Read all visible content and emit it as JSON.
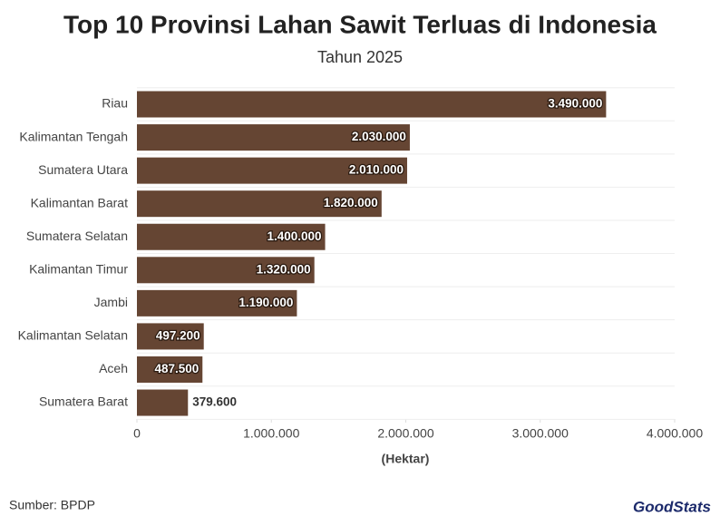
{
  "chart_data": {
    "type": "hbar",
    "title": "Top 10 Provinsi Lahan Sawit Terluas di Indonesia",
    "subtitle": "Tahun 2025",
    "x_label": "(Hektar)",
    "source": "Sumber: BPDP",
    "logo": "GoodStats",
    "categories": [
      "Riau",
      "Kalimantan Tengah",
      "Sumatera Utara",
      "Kalimantan Barat",
      "Sumatera Selatan",
      "Kalimantan Timur",
      "Jambi",
      "Kalimantan Selatan",
      "Aceh",
      "Sumatera Barat"
    ],
    "values": [
      3490000,
      2030000,
      2010000,
      1820000,
      1400000,
      1320000,
      1190000,
      497200,
      487500,
      379600
    ],
    "value_labels": [
      "3.490.000",
      "2.030.000",
      "2.010.000",
      "1.820.000",
      "1.400.000",
      "1.320.000",
      "1.190.000",
      "497.200",
      "487.500",
      "379.600"
    ],
    "color": "#654533",
    "xlim": [
      0,
      4000000
    ],
    "xticks": [
      0,
      {
        "value": 1000000,
        "label": "1.000.000"
      },
      {
        "value": 2000000,
        "label": "2.000.000"
      },
      {
        "value": 3000000,
        "label": "3.000.000"
      },
      {
        "value": 4000000,
        "label": "4.000.000"
      }
    ]
  }
}
